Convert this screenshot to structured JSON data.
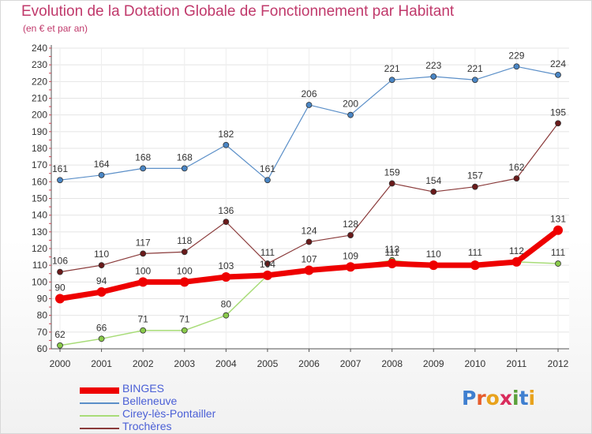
{
  "title": "Evolution de la Dotation Globale de Fonctionnement par Habitant",
  "subtitle": "(en € et par an)",
  "colors": {
    "title": "#c0396b",
    "binges": "#ee0000",
    "belleneuve": "#5b8fc8",
    "cirey": "#9ad164",
    "trocheres": "#7a2a2a",
    "legend_text": "#4a5fd6"
  },
  "logo": {
    "letters": [
      "P",
      "r",
      "o",
      "x",
      "i",
      "t",
      "i"
    ],
    "colors": [
      "#3f7fd0",
      "#e65c2c",
      "#e8a21c",
      "#d92c5c",
      "#5aa03a",
      "#3f7fd0",
      "#e8a21c"
    ]
  },
  "chart_data": {
    "type": "line",
    "x": [
      "2000",
      "2001",
      "2002",
      "2003",
      "2004",
      "2005",
      "2006",
      "2007",
      "2008",
      "2009",
      "2010",
      "2011",
      "2012"
    ],
    "ylim": [
      60,
      240
    ],
    "yticks": [
      60,
      70,
      80,
      90,
      100,
      110,
      120,
      130,
      140,
      150,
      160,
      170,
      180,
      190,
      200,
      210,
      220,
      230,
      240
    ],
    "grid": true,
    "legend_position": "bottom-left",
    "series": [
      {
        "name": "Belleneuve",
        "color": "#5b8fc8",
        "width": 1.2,
        "marker": "#4a86c5",
        "values": [
          161,
          164,
          168,
          168,
          182,
          161,
          206,
          200,
          221,
          223,
          221,
          229,
          224
        ],
        "labels": [
          "161",
          "164",
          "168",
          "168",
          "182",
          "161",
          "206",
          "200",
          "221",
          "223",
          "221",
          "229",
          "224"
        ]
      },
      {
        "name": "Trochères",
        "color": "#8a3a3a",
        "width": 1.2,
        "marker": "#6a1a1a",
        "values": [
          106,
          110,
          117,
          118,
          136,
          111,
          124,
          128,
          159,
          154,
          157,
          162,
          195
        ],
        "labels": [
          "106",
          "110",
          "117",
          "118",
          "136",
          "111",
          "124",
          "128",
          "159",
          "154",
          "157",
          "162",
          "195"
        ]
      },
      {
        "name": "Cirey-lès-Pontailler",
        "color": "#a8dc78",
        "width": 1.5,
        "marker": "#8acb4a",
        "values": [
          62,
          66,
          71,
          71,
          80,
          104,
          107,
          109,
          113,
          110,
          111,
          112,
          111
        ],
        "labels": [
          "62",
          "66",
          "71",
          "71",
          "80",
          "104",
          "107",
          "109",
          "113",
          "110",
          "111",
          "112",
          "111"
        ]
      },
      {
        "name": "BINGES",
        "color": "#ee0000",
        "width": 7,
        "marker": "#ee0000",
        "values": [
          90,
          94,
          100,
          100,
          103,
          104,
          107,
          109,
          111,
          110,
          110,
          112,
          131
        ],
        "labels": [
          "90",
          "94",
          "100",
          "100",
          "103",
          "",
          "",
          "",
          "111",
          "",
          "",
          "",
          "131"
        ]
      }
    ],
    "legend": [
      "BINGES",
      "Belleneuve",
      "Cirey-lès-Pontailler",
      "Trochères"
    ]
  }
}
